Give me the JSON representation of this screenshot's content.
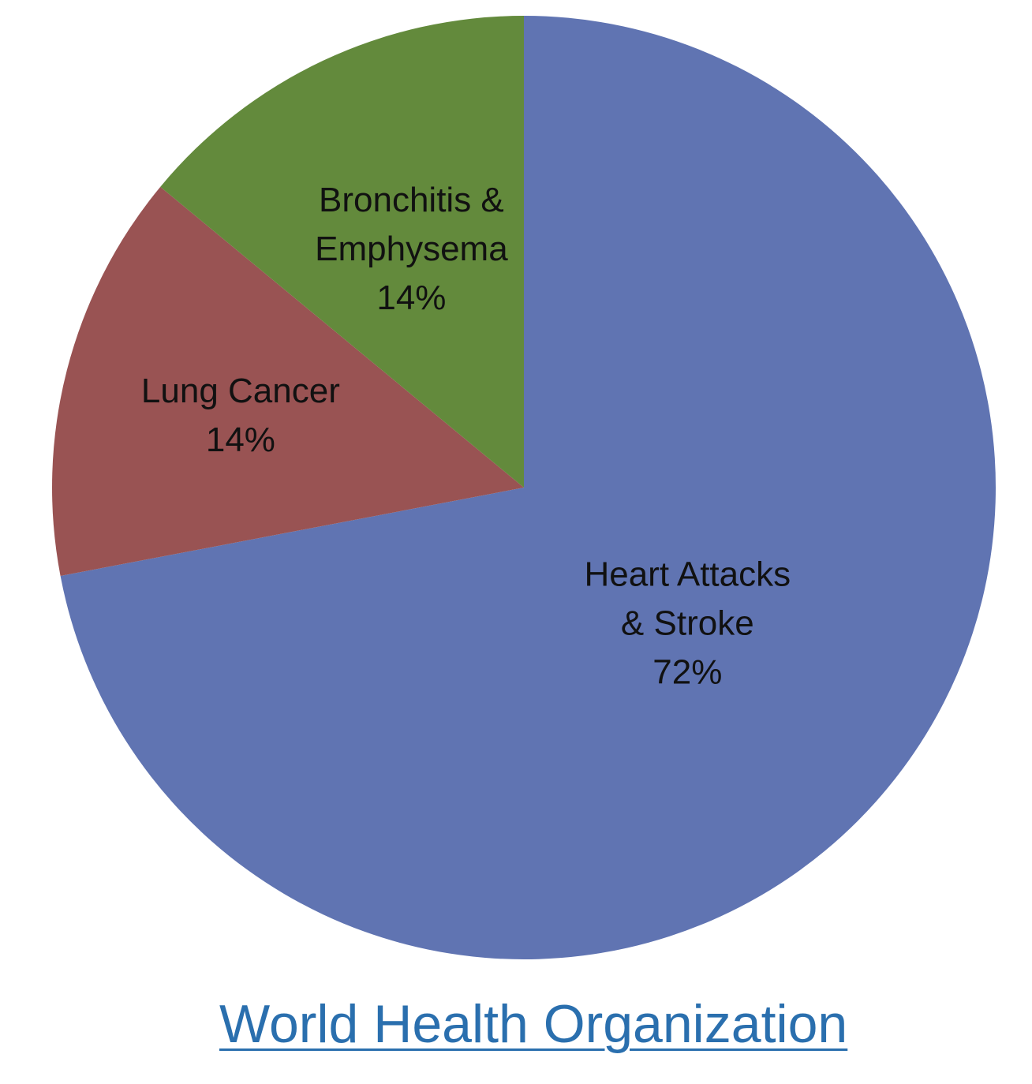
{
  "chart_data": {
    "type": "pie",
    "start_angle_deg": 0,
    "direction": "clockwise",
    "slices": [
      {
        "label_lines": [
          "Heart Attacks",
          "& Stroke"
        ],
        "value_label": "72%",
        "value": 72,
        "color": "#6074b2"
      },
      {
        "label_lines": [
          "Lung Cancer"
        ],
        "value_label": "14%",
        "value": 14,
        "color": "#995353"
      },
      {
        "label_lines": [
          "Bronchitis &",
          "Emphysema"
        ],
        "value_label": "14%",
        "value": 14,
        "color": "#638a3c"
      }
    ],
    "legend": "none",
    "data_labels": "inside"
  },
  "source": {
    "text": "World Health Organization",
    "color": "#2a6fae"
  }
}
